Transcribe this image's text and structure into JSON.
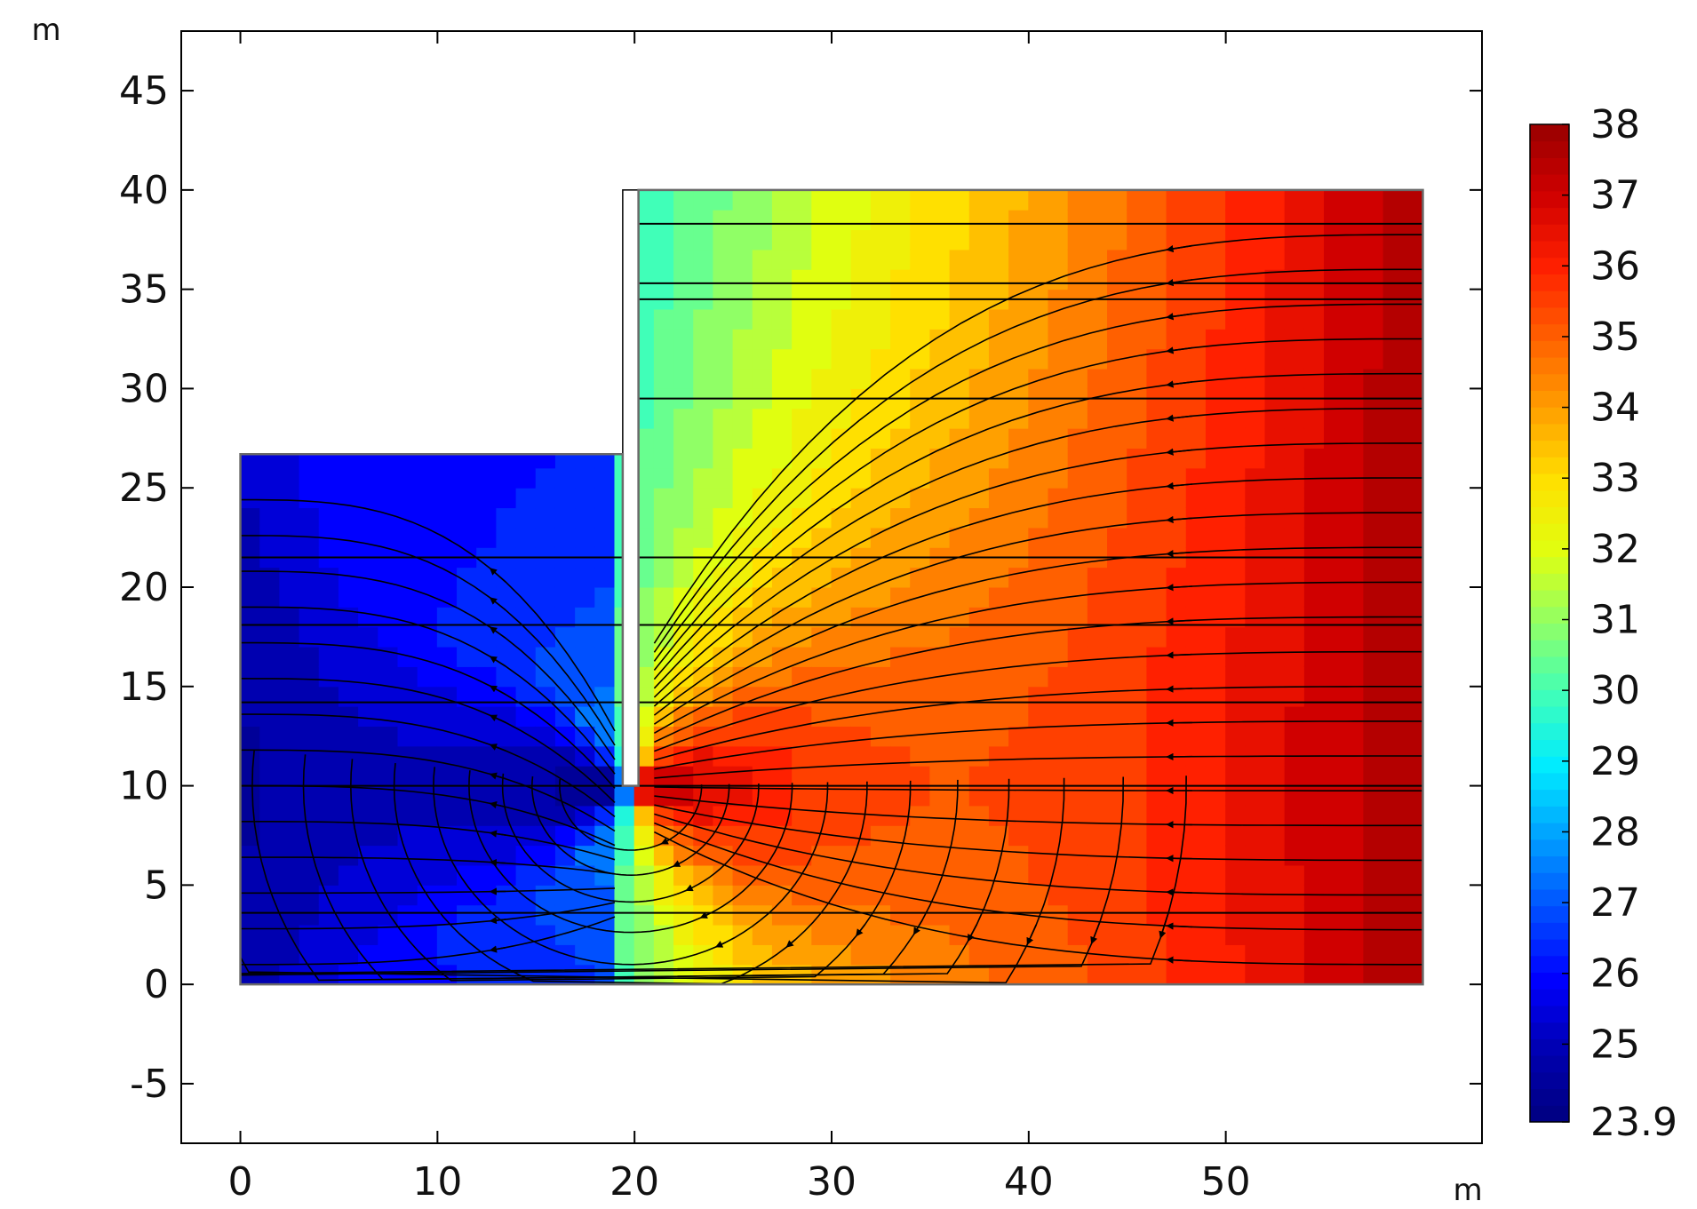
{
  "chart_data": {
    "type": "heatmap",
    "title": "",
    "xlabel": "m",
    "ylabel": "m",
    "xlim": [
      -3,
      63
    ],
    "ylim": [
      -8,
      48
    ],
    "xticks": [
      {
        "v": 0,
        "label": "0"
      },
      {
        "v": 10,
        "label": "10"
      },
      {
        "v": 20,
        "label": "20"
      },
      {
        "v": 30,
        "label": "30"
      },
      {
        "v": 40,
        "label": "40"
      },
      {
        "v": 50,
        "label": "50"
      }
    ],
    "yticks": [
      {
        "v": -5,
        "label": "-5"
      },
      {
        "v": 0,
        "label": "0"
      },
      {
        "v": 5,
        "label": "5"
      },
      {
        "v": 10,
        "label": "10"
      },
      {
        "v": 15,
        "label": "15"
      },
      {
        "v": 20,
        "label": "20"
      },
      {
        "v": 25,
        "label": "25"
      },
      {
        "v": 30,
        "label": "30"
      },
      {
        "v": 35,
        "label": "35"
      },
      {
        "v": 40,
        "label": "40"
      },
      {
        "v": 45,
        "label": "45"
      }
    ],
    "domain": {
      "left_block": {
        "x": [
          0,
          19.4
        ],
        "y": [
          0,
          26.7
        ]
      },
      "right_block": {
        "x": [
          20.2,
          60
        ],
        "y": [
          0,
          40
        ]
      },
      "sheet_pile": {
        "x": [
          19.4,
          20.2
        ],
        "y_bottom": 10,
        "y_top": 40
      }
    },
    "horizontal_lines_y": [
      38.3,
      35.3,
      34.5,
      29.5,
      21.5,
      18.1,
      14.2,
      10,
      3.6
    ],
    "colorbar": {
      "min": 23.9,
      "max": 38,
      "tick_labels": [
        "38",
        "37",
        "36",
        "35",
        "34",
        "33",
        "32",
        "31",
        "30",
        "29",
        "28",
        "27",
        "26",
        "25",
        "23.9"
      ],
      "tick_values": [
        38,
        37,
        36,
        35,
        34,
        33,
        32,
        31,
        30,
        29,
        28,
        27,
        26,
        25,
        23.9
      ],
      "colors": [
        "#00007f",
        "#0000b0",
        "#0000ff",
        "#0050ff",
        "#00a0ff",
        "#00ecff",
        "#40ffb8",
        "#90ff66",
        "#e0ff10",
        "#ffe000",
        "#ffa000",
        "#ff6000",
        "#ff2000",
        "#d00000",
        "#990000"
      ]
    },
    "grid": false,
    "legend": "right"
  }
}
